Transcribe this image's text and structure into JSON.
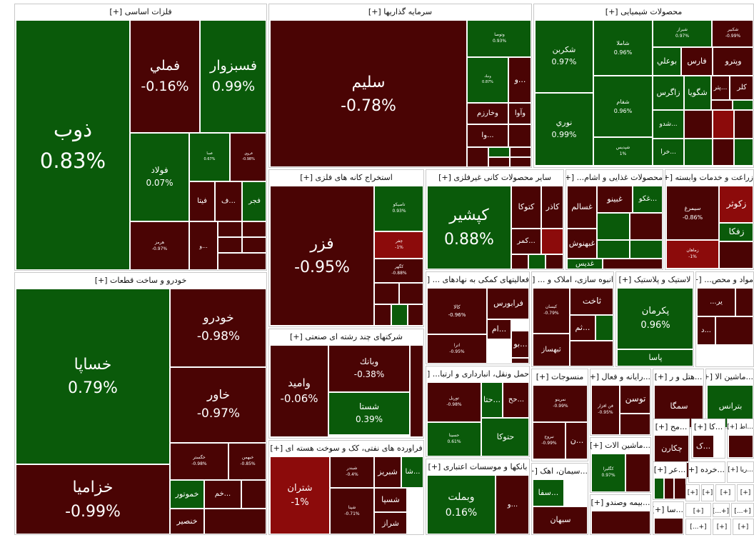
{
  "colors": {
    "positive": "#0a5a0a",
    "negative": "#4a0404",
    "strong_negative": "#8c0b0b"
  },
  "sectors": [
    {
      "id": "basic-metals",
      "title": "فلزات اساسی [+]",
      "tiles": [
        {
          "name": "ذوب",
          "change": "0.83%",
          "sign": "pos"
        },
        {
          "name": "فملي",
          "change": "-0.16%",
          "sign": "neg"
        },
        {
          "name": "فسبزوار",
          "change": "0.99%",
          "sign": "pos"
        },
        {
          "name": "فولاد",
          "change": "0.07%",
          "sign": "pos"
        },
        {
          "name": "فسا",
          "change": "0.67%",
          "sign": "pos"
        },
        {
          "name": "فروي",
          "change": "-0.98%",
          "sign": "neg"
        },
        {
          "name": "فيتا",
          "change": "",
          "sign": "neg"
        },
        {
          "name": "ف...",
          "change": "",
          "sign": "neg"
        },
        {
          "name": "فجر",
          "change": "",
          "sign": "pos"
        },
        {
          "name": "هرمز",
          "change": "-0.97%",
          "sign": "neg"
        },
        {
          "name": "و...",
          "change": "",
          "sign": "neg"
        }
      ]
    },
    {
      "id": "investments",
      "title": "سرمایه گذاریها [+]",
      "tiles": [
        {
          "name": "سليم",
          "change": "-0.78%",
          "sign": "neg"
        },
        {
          "name": "وتوصا",
          "change": "0.93%",
          "sign": "pos"
        },
        {
          "name": "ونيك",
          "change": "0.87%",
          "sign": "pos"
        },
        {
          "name": "و...",
          "change": "",
          "sign": "neg"
        },
        {
          "name": "وخارزم",
          "change": "",
          "sign": "neg"
        },
        {
          "name": "وآوا",
          "change": "",
          "sign": "neg"
        },
        {
          "name": "وا...",
          "change": "",
          "sign": "neg"
        }
      ]
    },
    {
      "id": "chemicals",
      "title": "محصولات شیمیایی [+]",
      "tiles": [
        {
          "name": "شكربن",
          "change": "0.97%",
          "sign": "pos"
        },
        {
          "name": "شاملا",
          "change": "0.96%",
          "sign": "pos"
        },
        {
          "name": "شيراز",
          "change": "0.97%",
          "sign": "pos"
        },
        {
          "name": "شكبير",
          "change": "-0.99%",
          "sign": "neg"
        },
        {
          "name": "بوعلي",
          "change": "",
          "sign": "pos"
        },
        {
          "name": "فارس",
          "change": "",
          "sign": "neg"
        },
        {
          "name": "وپترو",
          "change": "",
          "sign": "neg"
        },
        {
          "name": "نوري",
          "change": "0.99%",
          "sign": "pos"
        },
        {
          "name": "شفام",
          "change": "0.96%",
          "sign": "pos"
        },
        {
          "name": "زاگرس",
          "change": "",
          "sign": "pos"
        },
        {
          "name": "شگويا",
          "change": "",
          "sign": "pos"
        },
        {
          "name": "پتر...",
          "change": "",
          "sign": "neg"
        },
        {
          "name": "كلر",
          "change": "",
          "sign": "neg"
        },
        {
          "name": "شپديس",
          "change": "1%",
          "sign": "pos"
        },
        {
          "name": "شدو...",
          "change": "",
          "sign": "pos"
        },
        {
          "name": "خرا...",
          "change": "",
          "sign": "pos"
        }
      ]
    },
    {
      "id": "metal-mining",
      "title": "استخراج کانه های فلزی [+]",
      "tiles": [
        {
          "name": "فزر",
          "change": "-0.95%",
          "sign": "neg"
        },
        {
          "name": "تاصيكو",
          "change": "0.93%",
          "sign": "pos"
        },
        {
          "name": "چفر",
          "change": "-1%",
          "sign": "strong"
        },
        {
          "name": "كگهر",
          "change": "-0.88%",
          "sign": "neg"
        }
      ]
    },
    {
      "id": "non-metal-minerals",
      "title": "سایر محصولات کانی غیرفلزی [+]",
      "tiles": [
        {
          "name": "كپشير",
          "change": "0.88%",
          "sign": "pos"
        },
        {
          "name": "كتوكا",
          "change": "",
          "sign": "neg"
        },
        {
          "name": "كاذر",
          "change": "",
          "sign": "neg"
        },
        {
          "name": "كمر...",
          "change": "",
          "sign": "neg"
        }
      ]
    },
    {
      "id": "food",
      "title": "محصولات غذایی و اشام... [+]",
      "tiles": [
        {
          "name": "غسالم",
          "change": "",
          "sign": "neg"
        },
        {
          "name": "غبينو",
          "change": "",
          "sign": "neg"
        },
        {
          "name": "غكو...",
          "change": "",
          "sign": "pos"
        },
        {
          "name": "غبهنوش",
          "change": "",
          "sign": "neg"
        },
        {
          "name": "غديس",
          "change": "",
          "sign": "pos"
        }
      ]
    },
    {
      "id": "agriculture",
      "title": "زراعت و خدمات وابسته [+]",
      "tiles": [
        {
          "name": "سيمرغ",
          "change": "-0.86%",
          "sign": "neg"
        },
        {
          "name": "زكوثر",
          "change": "",
          "sign": "strong"
        },
        {
          "name": "زفكا",
          "change": "",
          "sign": "pos"
        },
        {
          "name": "زماهان",
          "change": "-1%",
          "sign": "strong"
        }
      ]
    },
    {
      "id": "auto",
      "title": "خودرو و ساخت قطعات [+]",
      "tiles": [
        {
          "name": "خساپا",
          "change": "0.79%",
          "sign": "pos"
        },
        {
          "name": "خودرو",
          "change": "-0.98%",
          "sign": "neg"
        },
        {
          "name": "خاور",
          "change": "-0.97%",
          "sign": "neg"
        },
        {
          "name": "خگستر",
          "change": "-0.98%",
          "sign": "neg"
        },
        {
          "name": "خبهمن",
          "change": "-0.85%",
          "sign": "neg"
        },
        {
          "name": "خزاميا",
          "change": "-0.99%",
          "sign": "neg"
        },
        {
          "name": "خموتور",
          "change": "",
          "sign": "pos"
        },
        {
          "name": "خم...",
          "change": "",
          "sign": "neg"
        },
        {
          "name": "خنصير",
          "change": "",
          "sign": "neg"
        }
      ]
    },
    {
      "id": "multi-industry",
      "title": "شرکتهای چند رشته ای صنعتی [+]",
      "tiles": [
        {
          "name": "واميد",
          "change": "-0.06%",
          "sign": "neg"
        },
        {
          "name": "وبانك",
          "change": "-0.38%",
          "sign": "neg"
        },
        {
          "name": "شستا",
          "change": "0.39%",
          "sign": "pos"
        }
      ]
    },
    {
      "id": "petroleum",
      "title": "فراورده های نفتی، کک و سوخت هسته ای [+]",
      "tiles": [
        {
          "name": "شتران",
          "change": "-1%",
          "sign": "strong"
        },
        {
          "name": "شبندر",
          "change": "-0.4%",
          "sign": "neg"
        },
        {
          "name": "شبريز",
          "change": "",
          "sign": "neg"
        },
        {
          "name": "شا...",
          "change": "",
          "sign": "pos"
        },
        {
          "name": "شسپا",
          "change": "",
          "sign": "neg"
        },
        {
          "name": "شپنا",
          "change": "-0.71%",
          "sign": "neg"
        },
        {
          "name": "شراز",
          "change": "",
          "sign": "neg"
        }
      ]
    },
    {
      "id": "aux-financial",
      "title": "فعالیتهای کمکی به نهادهای ... [+]",
      "tiles": [
        {
          "name": "كالا",
          "change": "-0.96%",
          "sign": "neg"
        },
        {
          "name": "فرابورس",
          "change": "",
          "sign": "neg"
        },
        {
          "name": "ام...",
          "change": "",
          "sign": "neg"
        },
        {
          "name": "اترا",
          "change": "-0.95%",
          "sign": "neg"
        },
        {
          "name": "بو...",
          "change": "",
          "sign": "neg"
        }
      ]
    },
    {
      "id": "construction",
      "title": "انبوه سازی، املاک و ... [+]",
      "tiles": [
        {
          "name": "كيسان",
          "change": "-0.79%",
          "sign": "neg"
        },
        {
          "name": "ثاخت",
          "change": "",
          "sign": "neg"
        },
        {
          "name": "ثم...",
          "change": "",
          "sign": "neg"
        },
        {
          "name": "ثبهساز",
          "change": "",
          "sign": "neg"
        }
      ]
    },
    {
      "id": "rubber-plastic",
      "title": "لاستیک و پلاستیک [+]",
      "tiles": [
        {
          "name": "پكرمان",
          "change": "0.96%",
          "sign": "pos"
        },
        {
          "name": "پاسا",
          "change": "",
          "sign": "pos"
        }
      ]
    },
    {
      "id": "materials",
      "title": "مواد و محص... [+]",
      "tiles": [
        {
          "name": "...ير",
          "change": "",
          "sign": "neg"
        },
        {
          "name": "د...",
          "change": "",
          "sign": "neg"
        }
      ]
    },
    {
      "id": "transport",
      "title": "حمل ونقل، انبارداری و ارتبا... [+]",
      "tiles": [
        {
          "name": "توريل",
          "change": "-0.98%",
          "sign": "neg"
        },
        {
          "name": "حتا...",
          "change": "",
          "sign": "pos"
        },
        {
          "name": "حسينا",
          "change": "0.61%",
          "sign": "pos"
        },
        {
          "name": "حتوكا",
          "change": "",
          "sign": "pos"
        },
        {
          "name": "حح...",
          "change": "",
          "sign": "neg"
        }
      ]
    },
    {
      "id": "textiles",
      "title": "منسوجات [+]",
      "tiles": [
        {
          "name": "نمرينو",
          "change": "-0.99%",
          "sign": "neg"
        },
        {
          "name": "نبروج",
          "change": "-0.99%",
          "sign": "neg"
        },
        {
          "name": "ن...",
          "change": "",
          "sign": "neg"
        }
      ]
    },
    {
      "id": "computer",
      "title": "...رایانه و فعال [+]",
      "tiles": [
        {
          "name": "فن افزار",
          "change": "-0.95%",
          "sign": "neg"
        },
        {
          "name": "توسن",
          "change": "",
          "sign": "neg"
        }
      ]
    },
    {
      "id": "hotels",
      "title": "...هتل و ر [+]",
      "tiles": [
        {
          "name": "سمگا",
          "change": "",
          "sign": "neg"
        }
      ]
    },
    {
      "id": "machinery",
      "title": "...ماشین الا [+]",
      "tiles": [
        {
          "name": "بترانس",
          "change": "",
          "sign": "pos"
        }
      ]
    },
    {
      "id": "banks",
      "title": "بانکها و موسسات اعتباری [+]",
      "tiles": [
        {
          "name": "وبملت",
          "change": "0.16%",
          "sign": "pos"
        },
        {
          "name": "و...",
          "change": "",
          "sign": "neg"
        }
      ]
    },
    {
      "id": "cement",
      "title": "...سیمان، اهک [+]",
      "tiles": [
        {
          "name": "سفا...",
          "change": "",
          "sign": "pos"
        },
        {
          "name": "سبهان",
          "change": "",
          "sign": "neg"
        }
      ]
    },
    {
      "id": "machinery2",
      "title": "...ماشین الات [+]",
      "tiles": [
        {
          "name": "كگليرا",
          "change": "0.97%",
          "sign": "pos"
        }
      ]
    },
    {
      "id": "insurance",
      "title": "...بیمه وصندو [+]",
      "tiles": []
    },
    {
      "id": "pharma",
      "title": "...مح [+]",
      "tiles": [
        {
          "name": "چكارن",
          "change": "",
          "sign": "neg"
        }
      ]
    },
    {
      "id": "small-ka",
      "title": "...كا [+]",
      "tiles": [
        {
          "name": "ک...",
          "change": "",
          "sign": "neg"
        }
      ]
    },
    {
      "id": "small-ta",
      "title": "...اط [+]",
      "tiles": []
    },
    {
      "id": "small-or",
      "title": "...عر [+]",
      "tiles": []
    },
    {
      "id": "retail",
      "title": "...خرده [+]",
      "tiles": []
    },
    {
      "id": "small-rya",
      "title": "...ريا [+]",
      "tiles": []
    },
    {
      "id": "small-sa",
      "title": "...سا [+]",
      "tiles": []
    },
    {
      "id": "tiny-1",
      "title": "[+]",
      "tiles": []
    },
    {
      "id": "tiny-2",
      "title": "[+]",
      "tiles": []
    },
    {
      "id": "tiny-3",
      "title": "[+]",
      "tiles": []
    },
    {
      "id": "tiny-4",
      "title": "[+]",
      "tiles": []
    },
    {
      "id": "tiny-5",
      "title": "[+]",
      "tiles": []
    },
    {
      "id": "tiny-6",
      "title": "[+...]",
      "tiles": []
    },
    {
      "id": "tiny-7",
      "title": "[+...]",
      "tiles": []
    },
    {
      "id": "tiny-8",
      "title": "[+...]",
      "tiles": []
    },
    {
      "id": "tiny-9",
      "title": "[+]",
      "tiles": []
    },
    {
      "id": "tiny-10",
      "title": "[+]",
      "tiles": []
    }
  ],
  "chart_data": {
    "type": "heatmap",
    "title": "",
    "description_of_encoding": "treemap; area = market value, color = daily change",
    "series": [
      {
        "sector": "فلزات اساسی",
        "symbols": [
          "ذوب",
          "فملي",
          "فسبزوار",
          "فولاد",
          "فسا",
          "فروي",
          "فيتا",
          "فجر",
          "هرمز"
        ],
        "changes": [
          0.83,
          -0.16,
          0.99,
          0.07,
          0.67,
          -0.98,
          null,
          null,
          -0.97
        ]
      },
      {
        "sector": "سرمایه گذاریها",
        "symbols": [
          "سليم",
          "وتوصا",
          "ونيك",
          "وخارزم",
          "وآوا"
        ],
        "changes": [
          -0.78,
          0.93,
          0.87,
          null,
          null
        ]
      },
      {
        "sector": "محصولات شیمیایی",
        "symbols": [
          "شكربن",
          "شاملا",
          "شيراز",
          "شكبير",
          "نوري",
          "شفام",
          "شپديس"
        ],
        "changes": [
          0.97,
          0.96,
          0.97,
          -0.99,
          0.99,
          0.96,
          1
        ]
      },
      {
        "sector": "استخراج کانه های فلزی",
        "symbols": [
          "فزر",
          "تاصيكو",
          "چفر",
          "كگهر"
        ],
        "changes": [
          -0.95,
          0.93,
          -1,
          -0.88
        ]
      },
      {
        "sector": "سایر محصولات کانی غیرفلزی",
        "symbols": [
          "كپشير"
        ],
        "changes": [
          0.88
        ]
      },
      {
        "sector": "زراعت و خدمات وابسته",
        "symbols": [
          "سيمرغ",
          "زماهان"
        ],
        "changes": [
          -0.86,
          -1
        ]
      },
      {
        "sector": "خودرو و ساخت قطعات",
        "symbols": [
          "خساپا",
          "خودرو",
          "خاور",
          "خگستر",
          "خبهمن",
          "خزاميا"
        ],
        "changes": [
          0.79,
          -0.98,
          -0.97,
          -0.98,
          -0.85,
          -0.99
        ]
      },
      {
        "sector": "شرکتهای چند رشته ای صنعتی",
        "symbols": [
          "واميد",
          "وبانك",
          "شستا"
        ],
        "changes": [
          -0.06,
          -0.38,
          0.39
        ]
      },
      {
        "sector": "فراورده های نفتی، کک و سوخت هسته ای",
        "symbols": [
          "شتران",
          "شبندر",
          "شپنا"
        ],
        "changes": [
          -1,
          -0.4,
          -0.71
        ]
      },
      {
        "sector": "فعالیتهای کمکی به نهادهای ...",
        "symbols": [
          "كالا",
          "اترا"
        ],
        "changes": [
          -0.96,
          -0.95
        ]
      },
      {
        "sector": "انبوه سازی، املاک و ...",
        "symbols": [
          "كيسان"
        ],
        "changes": [
          -0.79
        ]
      },
      {
        "sector": "لاستیک و پلاستیک",
        "symbols": [
          "پكرمان"
        ],
        "changes": [
          0.96
        ]
      },
      {
        "sector": "حمل ونقل، انبارداری و ارتبا...",
        "symbols": [
          "توريل",
          "حسينا"
        ],
        "changes": [
          -0.98,
          0.61
        ]
      },
      {
        "sector": "منسوجات",
        "symbols": [
          "نمرينو",
          "نبروج"
        ],
        "changes": [
          -0.99,
          -0.99
        ]
      },
      {
        "sector": "...رایانه و فعال",
        "symbols": [
          "فن افزار"
        ],
        "changes": [
          -0.95
        ]
      },
      {
        "sector": "بانکها و موسسات اعتباری",
        "symbols": [
          "وبملت"
        ],
        "changes": [
          0.16
        ]
      },
      {
        "sector": "...ماشین الات",
        "symbols": [
          "كگليرا"
        ],
        "changes": [
          0.97
        ]
      }
    ]
  }
}
